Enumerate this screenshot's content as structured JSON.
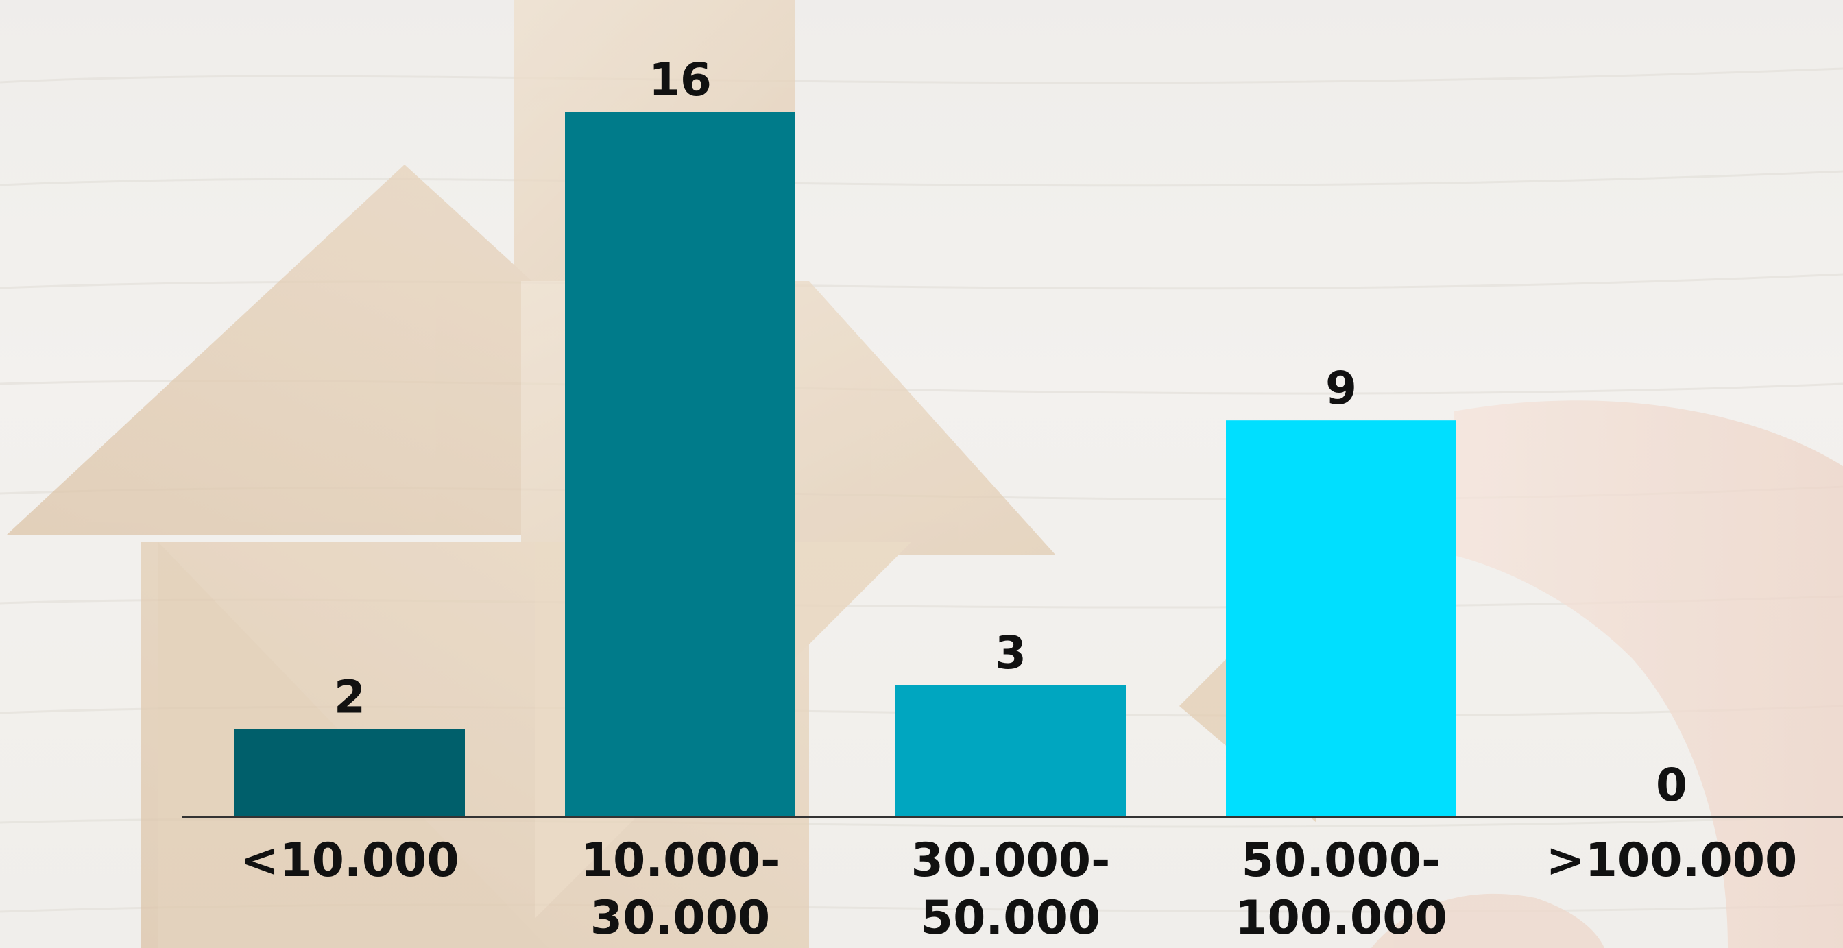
{
  "chart_data": {
    "type": "bar",
    "categories": [
      [
        "<10.000"
      ],
      [
        "10.000-",
        "30.000"
      ],
      [
        "30.000-",
        "50.000"
      ],
      [
        "50.000-",
        "100.000"
      ],
      [
        ">100.000"
      ]
    ],
    "values": [
      2,
      16,
      3,
      9,
      0
    ],
    "value_labels": [
      "2",
      "16",
      "3",
      "9",
      "0"
    ],
    "bar_colors": [
      "#005f6b",
      "#007b8a",
      "#00a6c0",
      "#00dfff",
      "#00dfff"
    ],
    "axis_color": "#333333",
    "title": "",
    "xlabel": "",
    "ylabel": "",
    "ylim": [
      0,
      16
    ],
    "grid": false,
    "legend": "none"
  },
  "background": {
    "description_icon": "wooden-tangram-house-icon",
    "wood_light": "#efe9e1",
    "wood_tone": "#dcc2a2",
    "wood_dark": "#c9a67e"
  }
}
